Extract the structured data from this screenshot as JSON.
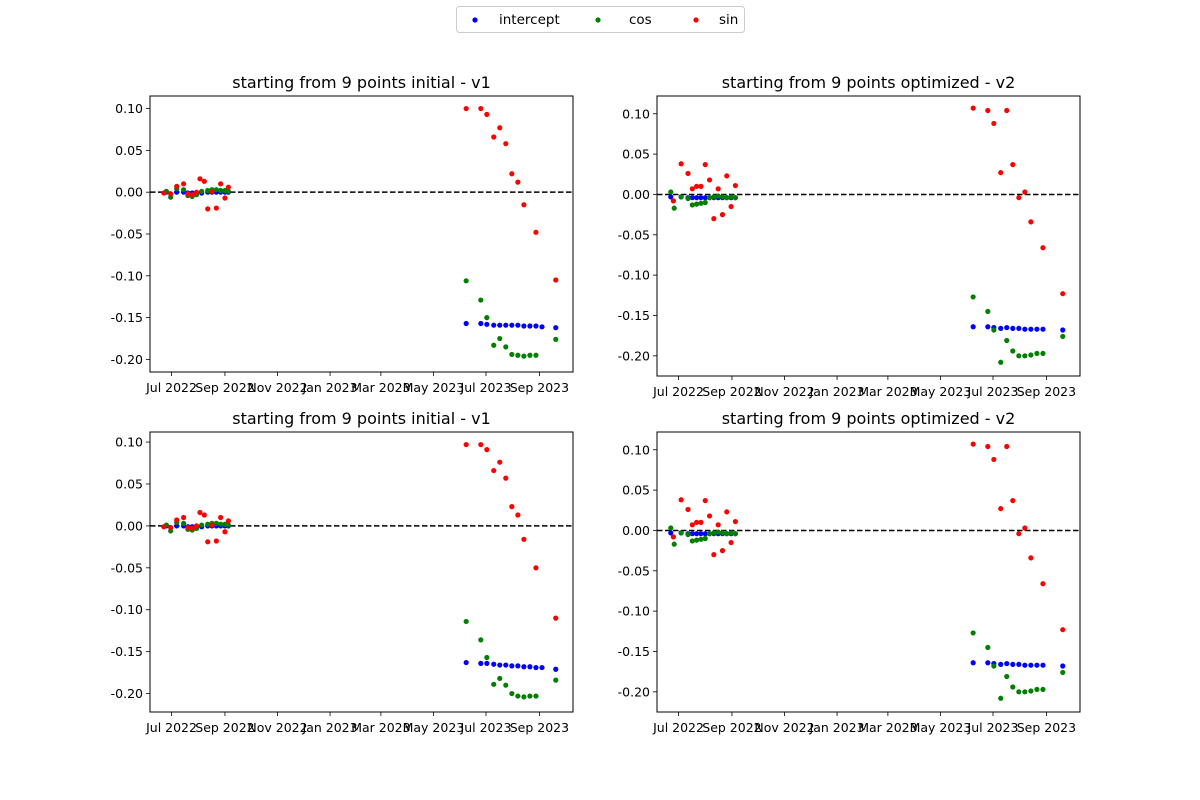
{
  "legend": {
    "placement": "top-center",
    "entries": [
      {
        "label": "intercept",
        "color": "#0000ff"
      },
      {
        "label": "cos",
        "color": "#008000"
      },
      {
        "label": "sin",
        "color": "#ff0000"
      }
    ]
  },
  "chart_data": [
    {
      "type": "scatter",
      "title": "starting from 9 points initial - v1",
      "x_ticks": [
        "Jul 2022",
        "Sep 2022",
        "Nov 2022",
        "Jan 2023",
        "Mar 2023",
        "May 2023",
        "Jul 2023",
        "Sep 2023"
      ],
      "x_tick_dates": [
        "2022-07-01",
        "2022-09-01",
        "2022-11-01",
        "2023-01-01",
        "2023-03-01",
        "2023-05-01",
        "2023-07-01",
        "2023-09-01"
      ],
      "xlim": [
        "2022-06-06",
        "2023-10-10"
      ],
      "y_ticks": [
        "0.10",
        "0.05",
        "0.00",
        "-0.05",
        "-0.10",
        "-0.15",
        "-0.20"
      ],
      "y_tick_values": [
        0.1,
        0.05,
        0.0,
        -0.05,
        -0.1,
        -0.15,
        -0.2
      ],
      "ylim": [
        -0.215,
        0.115
      ],
      "hline": 0,
      "series": [
        {
          "name": "intercept",
          "color": "#0000ff",
          "x": [
            "2022-06-25",
            "2022-07-07",
            "2022-07-15",
            "2022-07-20",
            "2022-07-25",
            "2022-07-30",
            "2022-08-05",
            "2022-08-12",
            "2022-08-17",
            "2022-08-22",
            "2022-08-27",
            "2022-09-01",
            "2022-09-05",
            "2023-06-08",
            "2023-06-25",
            "2023-07-02",
            "2023-07-10",
            "2023-07-17",
            "2023-07-24",
            "2023-07-31",
            "2023-08-07",
            "2023-08-14",
            "2023-08-21",
            "2023-08-28",
            "2023-09-04",
            "2023-09-20"
          ],
          "y": [
            0.0,
            0.0,
            0.0,
            -0.001,
            -0.001,
            -0.001,
            -0.001,
            0.0,
            0.0,
            0.0,
            0.0,
            0.0,
            0.0,
            -0.157,
            -0.157,
            -0.158,
            -0.159,
            -0.159,
            -0.159,
            -0.159,
            -0.159,
            -0.16,
            -0.16,
            -0.16,
            -0.161,
            -0.162
          ]
        },
        {
          "name": "cos",
          "color": "#008000",
          "x": [
            "2022-06-25",
            "2022-06-30",
            "2022-07-07",
            "2022-07-15",
            "2022-07-20",
            "2022-07-25",
            "2022-07-30",
            "2022-08-05",
            "2022-08-12",
            "2022-08-17",
            "2022-08-22",
            "2022-08-27",
            "2022-09-01",
            "2022-09-05",
            "2023-06-08",
            "2023-06-25",
            "2023-07-02",
            "2023-07-10",
            "2023-07-17",
            "2023-07-24",
            "2023-07-31",
            "2023-08-07",
            "2023-08-14",
            "2023-08-21",
            "2023-08-28",
            "2023-09-20"
          ],
          "y": [
            0.001,
            -0.006,
            0.004,
            0.003,
            -0.004,
            -0.005,
            -0.003,
            0.001,
            0.002,
            0.003,
            0.003,
            0.002,
            0.002,
            0.001,
            -0.106,
            -0.129,
            -0.15,
            -0.183,
            -0.175,
            -0.185,
            -0.194,
            -0.195,
            -0.196,
            -0.195,
            -0.195,
            -0.176
          ]
        },
        {
          "name": "sin",
          "color": "#ff0000",
          "x": [
            "2022-06-22",
            "2022-06-30",
            "2022-07-07",
            "2022-07-15",
            "2022-07-20",
            "2022-07-25",
            "2022-07-30",
            "2022-08-03",
            "2022-08-08",
            "2022-08-12",
            "2022-08-17",
            "2022-08-22",
            "2022-08-27",
            "2022-09-01",
            "2022-09-05",
            "2023-06-08",
            "2023-06-25",
            "2023-07-02",
            "2023-07-10",
            "2023-07-17",
            "2023-07-24",
            "2023-07-31",
            "2023-08-07",
            "2023-08-14",
            "2023-08-28",
            "2023-09-20"
          ],
          "y": [
            -0.001,
            -0.002,
            0.007,
            0.01,
            -0.002,
            -0.003,
            0.0,
            0.016,
            0.013,
            -0.02,
            0.001,
            -0.019,
            0.01,
            -0.007,
            0.006,
            0.1,
            0.1,
            0.093,
            0.066,
            0.077,
            0.058,
            0.022,
            0.012,
            -0.015,
            -0.048,
            -0.105
          ]
        }
      ]
    },
    {
      "type": "scatter",
      "title": "starting from 9 points optimized - v2",
      "x_ticks": [
        "Jul 2022",
        "Sep 2022",
        "Nov 2022",
        "Jan 2023",
        "Mar 2023",
        "May 2023",
        "Jul 2023",
        "Sep 2023"
      ],
      "x_tick_dates": [
        "2022-07-01",
        "2022-09-01",
        "2022-11-01",
        "2023-01-01",
        "2023-03-01",
        "2023-05-01",
        "2023-07-01",
        "2023-09-01"
      ],
      "xlim": [
        "2022-06-06",
        "2023-10-10"
      ],
      "y_ticks": [
        "0.10",
        "0.05",
        "0.00",
        "-0.05",
        "-0.10",
        "-0.15",
        "-0.20"
      ],
      "y_tick_values": [
        0.1,
        0.05,
        0.0,
        -0.05,
        -0.1,
        -0.15,
        -0.2
      ],
      "ylim": [
        -0.225,
        0.122
      ],
      "hline": 0,
      "series": [
        {
          "name": "intercept",
          "color": "#0000ff",
          "x": [
            "2022-06-22",
            "2022-07-04",
            "2022-07-12",
            "2022-07-17",
            "2022-07-22",
            "2022-07-27",
            "2022-08-01",
            "2022-08-06",
            "2022-08-11",
            "2022-08-16",
            "2022-08-21",
            "2022-08-26",
            "2022-08-31",
            "2022-09-05",
            "2023-06-08",
            "2023-06-25",
            "2023-07-02",
            "2023-07-10",
            "2023-07-17",
            "2023-07-24",
            "2023-07-31",
            "2023-08-07",
            "2023-08-14",
            "2023-08-21",
            "2023-08-28",
            "2023-09-20"
          ],
          "y": [
            -0.003,
            -0.003,
            -0.004,
            -0.004,
            -0.004,
            -0.004,
            -0.004,
            -0.004,
            -0.004,
            -0.004,
            -0.004,
            -0.004,
            -0.004,
            -0.004,
            -0.164,
            -0.164,
            -0.165,
            -0.166,
            -0.165,
            -0.166,
            -0.166,
            -0.167,
            -0.167,
            -0.167,
            -0.167,
            -0.168
          ]
        },
        {
          "name": "cos",
          "color": "#008000",
          "x": [
            "2022-06-22",
            "2022-06-26",
            "2022-07-04",
            "2022-07-12",
            "2022-07-17",
            "2022-07-22",
            "2022-07-27",
            "2022-08-01",
            "2022-08-06",
            "2022-08-11",
            "2022-08-16",
            "2022-08-21",
            "2022-08-26",
            "2022-08-31",
            "2022-09-05",
            "2023-06-08",
            "2023-06-25",
            "2023-07-02",
            "2023-07-10",
            "2023-07-17",
            "2023-07-24",
            "2023-07-31",
            "2023-08-07",
            "2023-08-14",
            "2023-08-21",
            "2023-08-28",
            "2023-09-20"
          ],
          "y": [
            0.003,
            -0.017,
            -0.003,
            -0.005,
            -0.013,
            -0.012,
            -0.011,
            -0.01,
            -0.004,
            -0.003,
            -0.002,
            -0.003,
            -0.004,
            -0.003,
            -0.004,
            -0.127,
            -0.145,
            -0.168,
            -0.208,
            -0.181,
            -0.194,
            -0.2,
            -0.2,
            -0.199,
            -0.197,
            -0.197,
            -0.176
          ]
        },
        {
          "name": "sin",
          "color": "#ff0000",
          "x": [
            "2022-06-25",
            "2022-07-04",
            "2022-07-12",
            "2022-07-17",
            "2022-07-22",
            "2022-07-27",
            "2022-08-01",
            "2022-08-06",
            "2022-08-11",
            "2022-08-16",
            "2022-08-21",
            "2022-08-26",
            "2022-08-31",
            "2022-09-05",
            "2023-06-08",
            "2023-06-25",
            "2023-07-02",
            "2023-07-10",
            "2023-07-17",
            "2023-07-24",
            "2023-07-31",
            "2023-08-07",
            "2023-08-14",
            "2023-08-28",
            "2023-09-20"
          ],
          "y": [
            -0.008,
            0.038,
            0.026,
            0.007,
            0.01,
            0.01,
            0.037,
            0.018,
            -0.03,
            0.007,
            -0.025,
            0.023,
            -0.015,
            0.011,
            0.107,
            0.104,
            0.088,
            0.027,
            0.104,
            0.037,
            -0.004,
            0.003,
            -0.034,
            -0.066,
            -0.123
          ]
        }
      ]
    },
    {
      "type": "scatter",
      "title": "starting from 9 points initial - v1",
      "x_ticks": [
        "Jul 2022",
        "Sep 2022",
        "Nov 2022",
        "Jan 2023",
        "Mar 2023",
        "May 2023",
        "Jul 2023",
        "Sep 2023"
      ],
      "x_tick_dates": [
        "2022-07-01",
        "2022-09-01",
        "2022-11-01",
        "2023-01-01",
        "2023-03-01",
        "2023-05-01",
        "2023-07-01",
        "2023-09-01"
      ],
      "xlim": [
        "2022-06-06",
        "2023-10-10"
      ],
      "y_ticks": [
        "0.10",
        "0.05",
        "0.00",
        "-0.05",
        "-0.10",
        "-0.15",
        "-0.20"
      ],
      "y_tick_values": [
        0.1,
        0.05,
        0.0,
        -0.05,
        -0.1,
        -0.15,
        -0.2
      ],
      "ylim": [
        -0.222,
        0.112
      ],
      "hline": 0,
      "series": [
        {
          "name": "intercept",
          "color": "#0000ff",
          "x": [
            "2022-06-25",
            "2022-07-07",
            "2022-07-15",
            "2022-07-20",
            "2022-07-25",
            "2022-07-30",
            "2022-08-05",
            "2022-08-12",
            "2022-08-17",
            "2022-08-22",
            "2022-08-27",
            "2022-09-01",
            "2022-09-05",
            "2023-06-08",
            "2023-06-25",
            "2023-07-02",
            "2023-07-10",
            "2023-07-17",
            "2023-07-24",
            "2023-07-31",
            "2023-08-07",
            "2023-08-14",
            "2023-08-21",
            "2023-08-28",
            "2023-09-04",
            "2023-09-20"
          ],
          "y": [
            0.0,
            0.0,
            0.0,
            -0.001,
            -0.001,
            -0.001,
            -0.001,
            0.0,
            0.0,
            0.0,
            0.0,
            0.0,
            0.0,
            -0.163,
            -0.164,
            -0.164,
            -0.165,
            -0.166,
            -0.166,
            -0.167,
            -0.167,
            -0.168,
            -0.168,
            -0.169,
            -0.169,
            -0.171
          ]
        },
        {
          "name": "cos",
          "color": "#008000",
          "x": [
            "2022-06-25",
            "2022-06-30",
            "2022-07-07",
            "2022-07-15",
            "2022-07-20",
            "2022-07-25",
            "2022-07-30",
            "2022-08-05",
            "2022-08-12",
            "2022-08-17",
            "2022-08-22",
            "2022-08-27",
            "2022-09-01",
            "2022-09-05",
            "2023-06-08",
            "2023-06-25",
            "2023-07-02",
            "2023-07-10",
            "2023-07-17",
            "2023-07-24",
            "2023-07-31",
            "2023-08-07",
            "2023-08-14",
            "2023-08-21",
            "2023-08-28",
            "2023-09-20"
          ],
          "y": [
            0.001,
            -0.006,
            0.004,
            0.003,
            -0.004,
            -0.005,
            -0.003,
            0.001,
            0.002,
            0.003,
            0.003,
            0.002,
            0.002,
            0.001,
            -0.114,
            -0.136,
            -0.157,
            -0.189,
            -0.182,
            -0.19,
            -0.2,
            -0.203,
            -0.204,
            -0.203,
            -0.203,
            -0.184
          ]
        },
        {
          "name": "sin",
          "color": "#ff0000",
          "x": [
            "2022-06-22",
            "2022-06-30",
            "2022-07-07",
            "2022-07-15",
            "2022-07-20",
            "2022-07-25",
            "2022-07-30",
            "2022-08-03",
            "2022-08-08",
            "2022-08-12",
            "2022-08-17",
            "2022-08-22",
            "2022-08-27",
            "2022-09-01",
            "2022-09-05",
            "2023-06-08",
            "2023-06-25",
            "2023-07-02",
            "2023-07-10",
            "2023-07-17",
            "2023-07-24",
            "2023-07-31",
            "2023-08-07",
            "2023-08-14",
            "2023-08-28",
            "2023-09-20"
          ],
          "y": [
            -0.001,
            -0.002,
            0.007,
            0.01,
            -0.002,
            -0.003,
            0.0,
            0.016,
            0.013,
            -0.019,
            0.001,
            -0.018,
            0.01,
            -0.007,
            0.006,
            0.097,
            0.097,
            0.091,
            0.066,
            0.076,
            0.057,
            0.023,
            0.013,
            -0.016,
            -0.05,
            -0.11
          ]
        }
      ]
    },
    {
      "type": "scatter",
      "title": "starting from 9 points optimized - v2",
      "x_ticks": [
        "Jul 2022",
        "Sep 2022",
        "Nov 2022",
        "Jan 2023",
        "Mar 2023",
        "May 2023",
        "Jul 2023",
        "Sep 2023"
      ],
      "x_tick_dates": [
        "2022-07-01",
        "2022-09-01",
        "2022-11-01",
        "2023-01-01",
        "2023-03-01",
        "2023-05-01",
        "2023-07-01",
        "2023-09-01"
      ],
      "xlim": [
        "2022-06-06",
        "2023-10-10"
      ],
      "y_ticks": [
        "0.10",
        "0.05",
        "0.00",
        "-0.05",
        "-0.10",
        "-0.15",
        "-0.20"
      ],
      "y_tick_values": [
        0.1,
        0.05,
        0.0,
        -0.05,
        -0.1,
        -0.15,
        -0.2
      ],
      "ylim": [
        -0.225,
        0.122
      ],
      "hline": 0,
      "series": [
        {
          "name": "intercept",
          "color": "#0000ff",
          "x": [
            "2022-06-22",
            "2022-07-04",
            "2022-07-12",
            "2022-07-17",
            "2022-07-22",
            "2022-07-27",
            "2022-08-01",
            "2022-08-06",
            "2022-08-11",
            "2022-08-16",
            "2022-08-21",
            "2022-08-26",
            "2022-08-31",
            "2022-09-05",
            "2023-06-08",
            "2023-06-25",
            "2023-07-02",
            "2023-07-10",
            "2023-07-17",
            "2023-07-24",
            "2023-07-31",
            "2023-08-07",
            "2023-08-14",
            "2023-08-21",
            "2023-08-28",
            "2023-09-20"
          ],
          "y": [
            -0.003,
            -0.003,
            -0.004,
            -0.004,
            -0.004,
            -0.004,
            -0.004,
            -0.004,
            -0.004,
            -0.004,
            -0.004,
            -0.004,
            -0.004,
            -0.004,
            -0.164,
            -0.164,
            -0.165,
            -0.166,
            -0.165,
            -0.166,
            -0.166,
            -0.167,
            -0.167,
            -0.167,
            -0.167,
            -0.168
          ]
        },
        {
          "name": "cos",
          "color": "#008000",
          "x": [
            "2022-06-22",
            "2022-06-26",
            "2022-07-04",
            "2022-07-12",
            "2022-07-17",
            "2022-07-22",
            "2022-07-27",
            "2022-08-01",
            "2022-08-06",
            "2022-08-11",
            "2022-08-16",
            "2022-08-21",
            "2022-08-26",
            "2022-08-31",
            "2022-09-05",
            "2023-06-08",
            "2023-06-25",
            "2023-07-02",
            "2023-07-10",
            "2023-07-17",
            "2023-07-24",
            "2023-07-31",
            "2023-08-07",
            "2023-08-14",
            "2023-08-21",
            "2023-08-28",
            "2023-09-20"
          ],
          "y": [
            0.003,
            -0.017,
            -0.003,
            -0.005,
            -0.013,
            -0.012,
            -0.011,
            -0.01,
            -0.004,
            -0.003,
            -0.002,
            -0.003,
            -0.004,
            -0.003,
            -0.004,
            -0.127,
            -0.145,
            -0.168,
            -0.208,
            -0.181,
            -0.194,
            -0.2,
            -0.2,
            -0.199,
            -0.197,
            -0.197,
            -0.176
          ]
        },
        {
          "name": "sin",
          "color": "#ff0000",
          "x": [
            "2022-06-25",
            "2022-07-04",
            "2022-07-12",
            "2022-07-17",
            "2022-07-22",
            "2022-07-27",
            "2022-08-01",
            "2022-08-06",
            "2022-08-11",
            "2022-08-16",
            "2022-08-21",
            "2022-08-26",
            "2022-08-31",
            "2022-09-05",
            "2023-06-08",
            "2023-06-25",
            "2023-07-02",
            "2023-07-10",
            "2023-07-17",
            "2023-07-24",
            "2023-07-31",
            "2023-08-07",
            "2023-08-14",
            "2023-08-28",
            "2023-09-20"
          ],
          "y": [
            -0.008,
            0.038,
            0.026,
            0.007,
            0.01,
            0.01,
            0.037,
            0.018,
            -0.03,
            0.007,
            -0.025,
            0.023,
            -0.015,
            0.011,
            0.107,
            0.104,
            0.088,
            0.027,
            0.104,
            0.037,
            -0.004,
            0.003,
            -0.034,
            -0.066,
            -0.123
          ]
        }
      ]
    }
  ]
}
